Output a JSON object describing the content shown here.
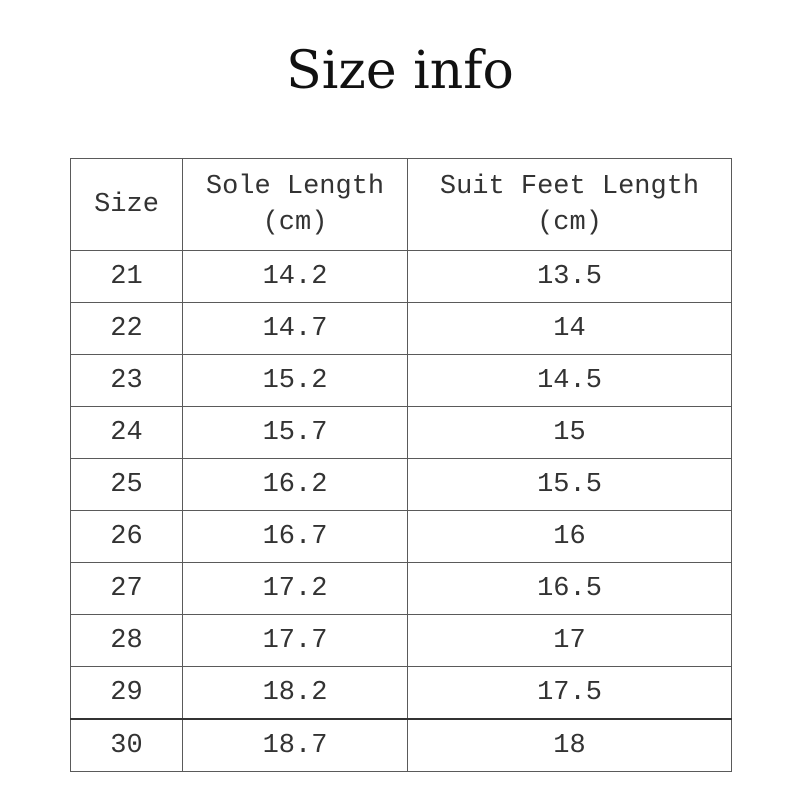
{
  "title": "Size info",
  "table": {
    "headers": [
      {
        "line1": "Size",
        "line2": ""
      },
      {
        "line1": "Sole Length",
        "line2": "(cm)"
      },
      {
        "line1": "Suit Feet Length",
        "line2": "(cm)"
      }
    ],
    "rows": [
      [
        "21",
        "14.2",
        "13.5"
      ],
      [
        "22",
        "14.7",
        "14"
      ],
      [
        "23",
        "15.2",
        "14.5"
      ],
      [
        "24",
        "15.7",
        "15"
      ],
      [
        "25",
        "16.2",
        "15.5"
      ],
      [
        "26",
        "16.7",
        "16"
      ],
      [
        "27",
        "17.2",
        "16.5"
      ],
      [
        "28",
        "17.7",
        "17"
      ],
      [
        "29",
        "18.2",
        "17.5"
      ],
      [
        "30",
        "18.7",
        "18"
      ]
    ]
  }
}
